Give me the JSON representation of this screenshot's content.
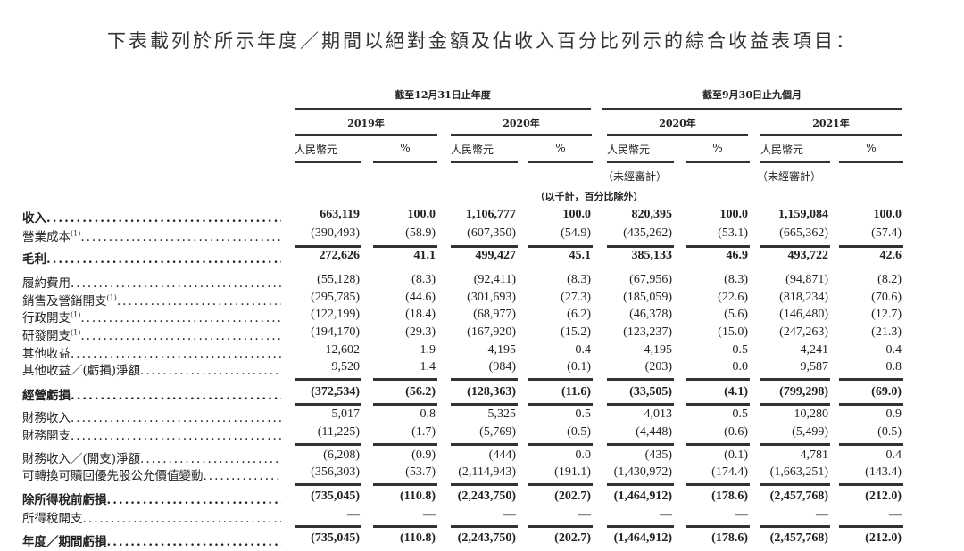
{
  "title": "下表載列於所示年度／期間以絕對金額及佔收入百分比列示的綜合收益表項目：",
  "header": {
    "group1": "截至12月31日止年度",
    "group2": "截至9月30日止九個月",
    "years": [
      "2019年",
      "2020年",
      "2020年",
      "2021年"
    ],
    "currency": "人民幣元",
    "percent": "%",
    "unaudited": "（未經審計）",
    "unit_note": "（以千計，百分比除外）"
  },
  "rows": [
    {
      "label": "收入",
      "sup": "",
      "bold": true,
      "values": [
        "663,119",
        "100.0",
        "1,106,777",
        "100.0",
        "820,395",
        "100.0",
        "1,159,084",
        "100.0"
      ]
    },
    {
      "label": "營業成本",
      "sup": "(1)",
      "bold": false,
      "values": [
        "(390,493)",
        "(58.9)",
        "(607,350)",
        "(54.9)",
        "(435,262)",
        "(53.1)",
        "(665,362)",
        "(57.4)"
      ]
    },
    {
      "label": "毛利",
      "sup": "",
      "bold": true,
      "values": [
        "272,626",
        "41.1",
        "499,427",
        "45.1",
        "385,133",
        "46.9",
        "493,722",
        "42.6"
      ]
    },
    {
      "label": "履約費用",
      "sup": "",
      "bold": false,
      "values": [
        "(55,128)",
        "(8.3)",
        "(92,411)",
        "(8.3)",
        "(67,956)",
        "(8.3)",
        "(94,871)",
        "(8.2)"
      ]
    },
    {
      "label": "銷售及營銷開支",
      "sup": "(1)",
      "bold": false,
      "values": [
        "(295,785)",
        "(44.6)",
        "(301,693)",
        "(27.3)",
        "(185,059)",
        "(22.6)",
        "(818,234)",
        "(70.6)"
      ]
    },
    {
      "label": "行政開支",
      "sup": "(1)",
      "bold": false,
      "values": [
        "(122,199)",
        "(18.4)",
        "(68,977)",
        "(6.2)",
        "(46,378)",
        "(5.6)",
        "(146,480)",
        "(12.7)"
      ]
    },
    {
      "label": "研發開支",
      "sup": "(1)",
      "bold": false,
      "values": [
        "(194,170)",
        "(29.3)",
        "(167,920)",
        "(15.2)",
        "(123,237)",
        "(15.0)",
        "(247,263)",
        "(21.3)"
      ]
    },
    {
      "label": "其他收益",
      "sup": "",
      "bold": false,
      "values": [
        "12,602",
        "1.9",
        "4,195",
        "0.4",
        "4,195",
        "0.5",
        "4,241",
        "0.4"
      ]
    },
    {
      "label": "其他收益／(虧損)淨額",
      "sup": "",
      "bold": false,
      "values": [
        "9,520",
        "1.4",
        "(984)",
        "(0.1)",
        "(203)",
        "0.0",
        "9,587",
        "0.8"
      ]
    },
    {
      "label": "經營虧損",
      "sup": "",
      "bold": true,
      "values": [
        "(372,534)",
        "(56.2)",
        "(128,363)",
        "(11.6)",
        "(33,505)",
        "(4.1)",
        "(799,298)",
        "(69.0)"
      ]
    },
    {
      "label": "財務收入",
      "sup": "",
      "bold": false,
      "values": [
        "5,017",
        "0.8",
        "5,325",
        "0.5",
        "4,013",
        "0.5",
        "10,280",
        "0.9"
      ]
    },
    {
      "label": "財務開支",
      "sup": "",
      "bold": false,
      "values": [
        "(11,225)",
        "(1.7)",
        "(5,769)",
        "(0.5)",
        "(4,448)",
        "(0.6)",
        "(5,499)",
        "(0.5)"
      ]
    },
    {
      "label": "財務收入／(開支)淨額",
      "sup": "",
      "bold": false,
      "values": [
        "(6,208)",
        "(0.9)",
        "(444)",
        "0.0",
        "(435)",
        "(0.1)",
        "4,781",
        "0.4"
      ]
    },
    {
      "label": "可轉換可贖回優先股公允價值變動",
      "sup": "",
      "bold": false,
      "values": [
        "(356,303)",
        "(53.7)",
        "(2,114,943)",
        "(191.1)",
        "(1,430,972)",
        "(174.4)",
        "(1,663,251)",
        "(143.4)"
      ]
    },
    {
      "label": "除所得稅前虧損",
      "sup": "",
      "bold": true,
      "values": [
        "(735,045)",
        "(110.8)",
        "(2,243,750)",
        "(202.7)",
        "(1,464,912)",
        "(178.6)",
        "(2,457,768)",
        "(212.0)"
      ]
    },
    {
      "label": "所得稅開支",
      "sup": "",
      "bold": false,
      "values": [
        "—",
        "—",
        "—",
        "—",
        "—",
        "—",
        "—",
        "—"
      ]
    },
    {
      "label": "年度／期間虧損",
      "sup": "",
      "bold": true,
      "values": [
        "(735,045)",
        "(110.8)",
        "(2,243,750)",
        "(202.7)",
        "(1,464,912)",
        "(178.6)",
        "(2,457,768)",
        "(212.0)"
      ]
    }
  ]
}
